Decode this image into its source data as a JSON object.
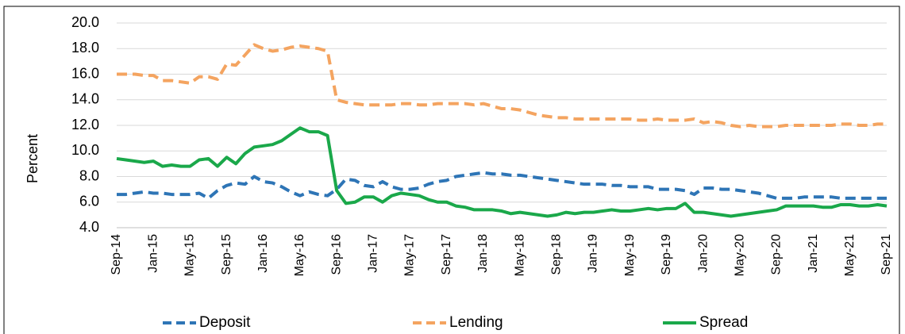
{
  "chart_data": {
    "type": "line",
    "y_label": "Percent",
    "categories": [
      "Sep-14",
      null,
      null,
      null,
      "Jan-15",
      null,
      null,
      null,
      "May-15",
      null,
      null,
      null,
      "Sep-15",
      null,
      null,
      null,
      "Jan-16",
      null,
      null,
      null,
      "May-16",
      null,
      null,
      null,
      "Sep-16",
      null,
      null,
      null,
      "Jan-17",
      null,
      null,
      null,
      "May-17",
      null,
      null,
      null,
      "Sep-17",
      null,
      null,
      null,
      "Jan-18",
      null,
      null,
      null,
      "May-18",
      null,
      null,
      null,
      "Sep-18",
      null,
      null,
      null,
      "Jan-19",
      null,
      null,
      null,
      "May-19",
      null,
      null,
      null,
      "Sep-19",
      null,
      null,
      null,
      "Jan-20",
      null,
      null,
      null,
      "May-20",
      null,
      null,
      null,
      "Sep-20",
      null,
      null,
      null,
      "Jan-21",
      null,
      null,
      null,
      "May-21",
      null,
      null,
      null,
      "Sep-21"
    ],
    "series": [
      {
        "name": "Deposit",
        "color": "#2e75b6",
        "style": "dashed",
        "values": [
          6.6,
          6.6,
          6.7,
          6.8,
          6.7,
          6.7,
          6.6,
          6.6,
          6.6,
          6.7,
          6.3,
          6.9,
          7.3,
          7.5,
          7.4,
          8.0,
          7.6,
          7.5,
          7.2,
          6.8,
          6.5,
          6.8,
          6.6,
          6.5,
          7.0,
          7.8,
          7.7,
          7.3,
          7.2,
          7.6,
          7.2,
          7.0,
          7.0,
          7.1,
          7.4,
          7.6,
          7.7,
          8.0,
          8.1,
          8.2,
          8.3,
          8.2,
          8.2,
          8.1,
          8.1,
          8.0,
          7.9,
          7.8,
          7.7,
          7.6,
          7.5,
          7.4,
          7.4,
          7.4,
          7.3,
          7.3,
          7.2,
          7.2,
          7.2,
          7.0,
          7.0,
          7.0,
          6.9,
          6.6,
          7.1,
          7.1,
          7.0,
          7.0,
          6.9,
          6.8,
          6.7,
          6.5,
          6.3,
          6.3,
          6.3,
          6.4,
          6.4,
          6.4,
          6.4,
          6.3,
          6.3,
          6.3,
          6.3,
          6.3,
          6.3
        ]
      },
      {
        "name": "Lending",
        "color": "#f4a460",
        "style": "dashed",
        "values": [
          16.0,
          16.0,
          16.0,
          15.9,
          15.9,
          15.5,
          15.5,
          15.4,
          15.3,
          15.8,
          15.8,
          15.6,
          16.8,
          16.7,
          17.5,
          18.3,
          18.0,
          17.8,
          17.9,
          18.1,
          18.2,
          18.1,
          18.0,
          17.8,
          14.0,
          13.8,
          13.7,
          13.6,
          13.6,
          13.6,
          13.6,
          13.7,
          13.7,
          13.6,
          13.6,
          13.7,
          13.7,
          13.7,
          13.7,
          13.6,
          13.7,
          13.5,
          13.3,
          13.3,
          13.2,
          13.0,
          12.8,
          12.7,
          12.6,
          12.6,
          12.5,
          12.5,
          12.5,
          12.5,
          12.5,
          12.5,
          12.5,
          12.4,
          12.4,
          12.5,
          12.4,
          12.4,
          12.4,
          12.5,
          12.2,
          12.3,
          12.2,
          12.0,
          11.9,
          12.0,
          11.9,
          11.9,
          11.9,
          12.0,
          12.0,
          12.0,
          12.0,
          12.0,
          12.0,
          12.1,
          12.1,
          12.0,
          12.0,
          12.1,
          12.1
        ]
      },
      {
        "name": "Spread",
        "color": "#1aa84a",
        "style": "solid",
        "values": [
          9.4,
          9.3,
          9.2,
          9.1,
          9.2,
          8.8,
          8.9,
          8.8,
          8.8,
          9.3,
          9.4,
          8.8,
          9.5,
          9.0,
          9.8,
          10.3,
          10.4,
          10.5,
          10.8,
          11.3,
          11.8,
          11.5,
          11.5,
          11.2,
          6.9,
          5.9,
          6.0,
          6.4,
          6.4,
          6.0,
          6.5,
          6.7,
          6.6,
          6.5,
          6.2,
          6.0,
          6.0,
          5.7,
          5.6,
          5.4,
          5.4,
          5.4,
          5.3,
          5.1,
          5.2,
          5.1,
          5.0,
          4.9,
          5.0,
          5.2,
          5.1,
          5.2,
          5.2,
          5.3,
          5.4,
          5.3,
          5.3,
          5.4,
          5.5,
          5.4,
          5.5,
          5.5,
          5.9,
          5.2,
          5.2,
          5.1,
          5.0,
          4.9,
          5.0,
          5.1,
          5.2,
          5.3,
          5.4,
          5.7,
          5.7,
          5.7,
          5.7,
          5.6,
          5.6,
          5.8,
          5.8,
          5.7,
          5.7,
          5.8,
          5.7
        ]
      }
    ],
    "ylim": [
      4,
      20
    ],
    "yticks": [
      {
        "value": 4,
        "label": "4.0"
      },
      {
        "value": 6,
        "label": "6.0"
      },
      {
        "value": 8,
        "label": "8.0"
      },
      {
        "value": 10,
        "label": "10.0"
      },
      {
        "value": 12,
        "label": "12.0"
      },
      {
        "value": 14,
        "label": "14.0"
      },
      {
        "value": 16,
        "label": "16.0"
      },
      {
        "value": 18,
        "label": "18.0"
      },
      {
        "value": 20,
        "label": "20.0"
      }
    ],
    "grid": true,
    "legend": "bottom"
  }
}
